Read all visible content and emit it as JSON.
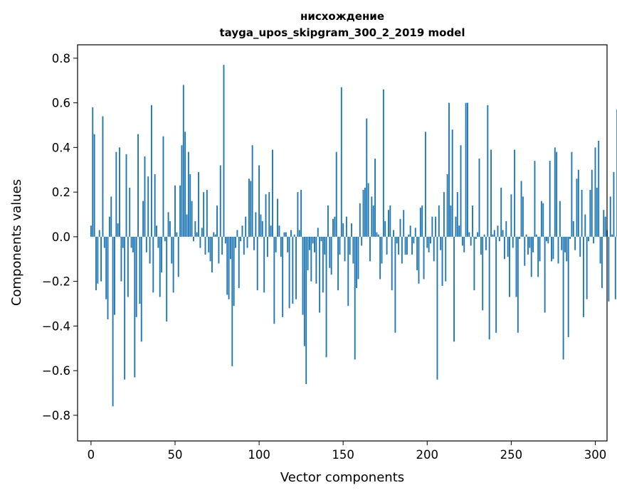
{
  "chart_data": {
    "type": "bar",
    "title_line1": "нисхождение",
    "title_line2": "tayga_upos_skipgram_300_2_2019 model",
    "xlabel": "Vector components",
    "ylabel": "Components values",
    "xlim": [
      -8,
      307
    ],
    "ylim": [
      -0.915,
      0.86
    ],
    "xticks": [
      0,
      50,
      100,
      150,
      200,
      250,
      300
    ],
    "xtick_labels": [
      "0",
      "50",
      "100",
      "150",
      "200",
      "250",
      "300"
    ],
    "yticks": [
      -0.8,
      -0.6,
      -0.4,
      -0.2,
      0.0,
      0.2,
      0.4,
      0.6,
      0.8
    ],
    "ytick_labels": [
      "−0.8",
      "−0.6",
      "−0.4",
      "−0.2",
      "0.0",
      "0.2",
      "0.4",
      "0.6",
      "0.8"
    ],
    "bar_color": "#1f77b4",
    "values": [
      0.05,
      0.58,
      0.46,
      -0.24,
      -0.21,
      0.03,
      -0.2,
      0.54,
      -0.05,
      -0.28,
      -0.37,
      0.09,
      0.18,
      -0.76,
      -0.35,
      0.38,
      0.06,
      0.4,
      -0.2,
      -0.05,
      -0.64,
      0.37,
      -0.27,
      0.22,
      -0.05,
      -0.07,
      -0.63,
      -0.36,
      0.46,
      -0.3,
      -0.47,
      0.16,
      0.36,
      -0.07,
      0.27,
      -0.12,
      0.59,
      -0.25,
      0.28,
      0.05,
      -0.05,
      -0.27,
      -0.16,
      0.45,
      -0.02,
      -0.38,
      0.11,
      0.07,
      -0.12,
      -0.25,
      0.23,
      0.02,
      -0.18,
      0.23,
      0.41,
      0.68,
      0.47,
      0.1,
      0.38,
      0.28,
      0.16,
      -0.02,
      0.07,
      0.02,
      0.29,
      -0.05,
      0.04,
      0.2,
      -0.08,
      0.21,
      -0.07,
      -0.11,
      -0.16,
      0.02,
      0.01,
      0.14,
      -0.12,
      0.32,
      -0.08,
      0.77,
      -0.03,
      -0.26,
      -0.28,
      -0.1,
      -0.58,
      -0.31,
      -0.05,
      0.03,
      -0.23,
      -0.02,
      0.05,
      -0.08,
      0.09,
      -0.05,
      0.26,
      0.25,
      0.41,
      -0.06,
      0.11,
      -0.24,
      0.32,
      0.1,
      0.07,
      -0.25,
      0.19,
      -0.09,
      0.2,
      0.05,
      0.39,
      -0.39,
      -0.07,
      0.17,
      0.05,
      -0.09,
      -0.36,
      0.02,
      0.02,
      -0.07,
      -0.32,
      0.03,
      -0.3,
      0.01,
      -0.28,
      0.2,
      0.03,
      0.21,
      -0.35,
      -0.49,
      -0.66,
      -0.15,
      -0.06,
      -0.2,
      -0.03,
      -0.07,
      -0.21,
      0.04,
      -0.34,
      -0.02,
      -0.25,
      -0.08,
      -0.54,
      0.14,
      -0.14,
      -0.17,
      0.08,
      0.09,
      0.38,
      -0.24,
      -0.08,
      0.67,
      0.06,
      -0.11,
      0.09,
      -0.31,
      -0.08,
      0.06,
      -0.12,
      -0.55,
      -0.23,
      -0.19,
      0.15,
      -0.04,
      0.21,
      0.22,
      0.53,
      0.24,
      -0.11,
      0.18,
      0.14,
      0.35,
      0.02,
      0.01,
      -0.19,
      -0.12,
      0.66,
      0.07,
      -0.08,
      0.12,
      0.14,
      -0.24,
      0.03,
      -0.43,
      -0.03,
      -0.08,
      0.08,
      -0.12,
      0.12,
      -0.08,
      -0.08,
      0.01,
      0.05,
      -0.08,
      -0.03,
      0.04,
      -0.15,
      -0.21,
      0.13,
      0.14,
      -0.19,
      0.47,
      -0.05,
      -0.07,
      -0.03,
      0.09,
      -0.11,
      0.09,
      -0.64,
      0.14,
      -0.06,
      -0.22,
      0.2,
      -0.2,
      0.28,
      0.6,
      0.14,
      0.48,
      -0.47,
      0.09,
      0.2,
      0.05,
      0.41,
      -0.04,
      -0.07,
      0.6,
      0.6,
      0.02,
      -0.04,
      0.14,
      -0.24,
      -0.01,
      0.02,
      0.35,
      -0.08,
      -0.33,
      0.01,
      -0.06,
      0.59,
      -0.46,
      0.39,
      0.01,
      0.03,
      -0.43,
      0.05,
      -0.02,
      0.22,
      0.03,
      -0.1,
      0.07,
      -0.09,
      -0.27,
      0.19,
      -0.05,
      0.39,
      -0.27,
      -0.43,
      -0.01,
      0.25,
      0.18,
      -0.13,
      0.01,
      -0.08,
      -0.05,
      -0.18,
      -0.07,
      0.34,
      0.01,
      -0.18,
      -0.11,
      0.16,
      0.15,
      -0.34,
      -0.02,
      -0.03,
      0.34,
      -0.11,
      -0.1,
      0.4,
      0.38,
      -0.12,
      0.16,
      -0.06,
      -0.55,
      -0.07,
      -0.11,
      -0.45,
      -0.01,
      0.38,
      0.07,
      -0.06,
      0.26,
      0.3,
      -0.09,
      0.21,
      -0.36,
      0.1,
      -0.28,
      -0.02,
      0.21,
      0.3,
      -0.03,
      0.4,
      0.22,
      0.43,
      -0.12,
      -0.23,
      0.12,
      0.09,
      0.03,
      -0.29,
      0.18,
      0.01,
      0.29,
      -0.28,
      0.57,
      -0.19
    ]
  }
}
